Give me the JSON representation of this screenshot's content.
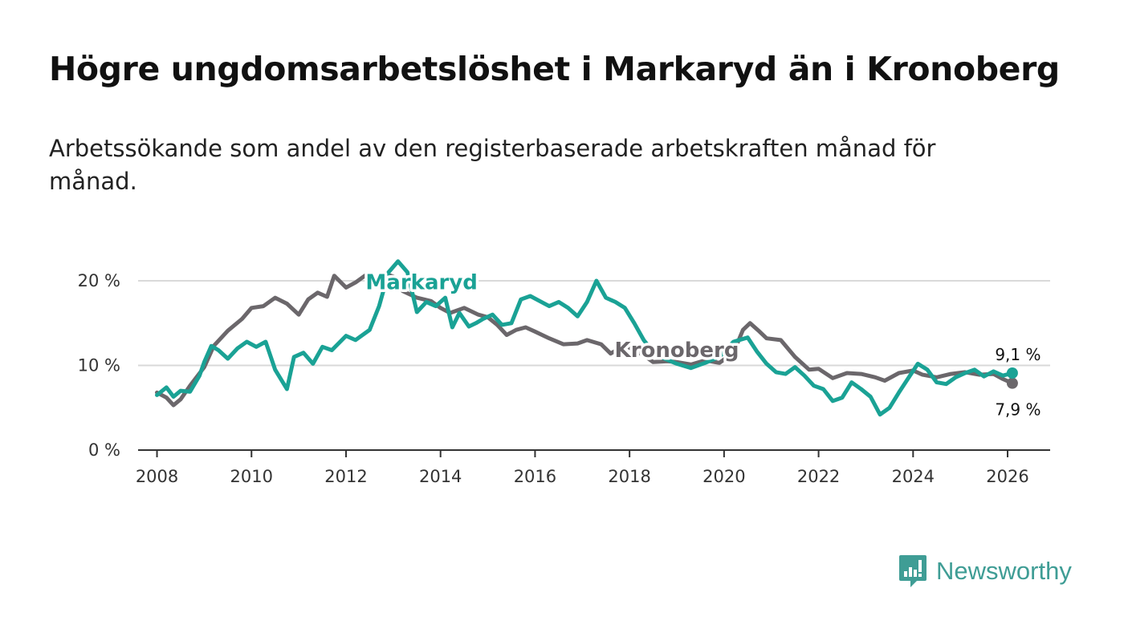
{
  "title": "Högre ungdomsarbetslöshet i Markaryd än i Kronoberg",
  "subtitle": "Arbetssökande som andel av den registerbaserade arbetskraften månad för månad.",
  "brand": {
    "name": "Newsworthy",
    "icon": "newsworthy-logo-icon"
  },
  "colors": {
    "markaryd": "#1aa295",
    "kronoberg": "#6b676b",
    "grid": "#d9d9d9",
    "axis": "#333333"
  },
  "chart_data": {
    "type": "line",
    "title": "Högre ungdomsarbetslöshet i Markaryd än i Kronoberg",
    "xlabel": "",
    "ylabel": "",
    "xlim": [
      2007.6,
      2026.9
    ],
    "ylim": [
      0,
      20
    ],
    "x_ticks": [
      2008,
      2010,
      2012,
      2014,
      2016,
      2018,
      2020,
      2022,
      2024,
      2026
    ],
    "y_ticks": [
      0,
      10,
      20
    ],
    "y_tick_labels": [
      "0 %",
      "10 %",
      "20 %"
    ],
    "series": [
      {
        "name": "Kronoberg",
        "label": "Kronoberg",
        "color": "#6b676b",
        "end_label": "7,9 %",
        "points": [
          [
            2008.0,
            6.8
          ],
          [
            2008.2,
            6.2
          ],
          [
            2008.35,
            5.3
          ],
          [
            2008.5,
            6.0
          ],
          [
            2008.7,
            7.6
          ],
          [
            2009.0,
            9.8
          ],
          [
            2009.2,
            12.3
          ],
          [
            2009.5,
            14.1
          ],
          [
            2009.8,
            15.5
          ],
          [
            2010.0,
            16.8
          ],
          [
            2010.25,
            17.0
          ],
          [
            2010.5,
            18.0
          ],
          [
            2010.75,
            17.3
          ],
          [
            2011.0,
            16.0
          ],
          [
            2011.2,
            17.8
          ],
          [
            2011.4,
            18.6
          ],
          [
            2011.6,
            18.1
          ],
          [
            2011.75,
            20.6
          ],
          [
            2012.0,
            19.2
          ],
          [
            2012.2,
            19.8
          ],
          [
            2012.4,
            20.6
          ],
          [
            2012.6,
            19.5
          ],
          [
            2012.8,
            20.9
          ],
          [
            2013.0,
            20.5
          ],
          [
            2013.2,
            18.8
          ],
          [
            2013.5,
            18.0
          ],
          [
            2013.8,
            17.6
          ],
          [
            2014.0,
            16.8
          ],
          [
            2014.2,
            16.2
          ],
          [
            2014.5,
            16.8
          ],
          [
            2014.8,
            16.0
          ],
          [
            2015.0,
            15.7
          ],
          [
            2015.2,
            14.8
          ],
          [
            2015.4,
            13.6
          ],
          [
            2015.6,
            14.2
          ],
          [
            2015.8,
            14.5
          ],
          [
            2016.0,
            14.0
          ],
          [
            2016.3,
            13.2
          ],
          [
            2016.6,
            12.5
          ],
          [
            2016.9,
            12.6
          ],
          [
            2017.1,
            13.0
          ],
          [
            2017.4,
            12.5
          ],
          [
            2017.6,
            11.4
          ],
          [
            2017.9,
            12.4
          ],
          [
            2018.1,
            11.8
          ],
          [
            2018.3,
            11.2
          ],
          [
            2018.5,
            10.4
          ],
          [
            2018.8,
            10.5
          ],
          [
            2019.0,
            10.4
          ],
          [
            2019.3,
            10.1
          ],
          [
            2019.6,
            10.6
          ],
          [
            2019.9,
            10.3
          ],
          [
            2020.2,
            11.5
          ],
          [
            2020.4,
            14.2
          ],
          [
            2020.55,
            15.0
          ],
          [
            2020.75,
            14.0
          ],
          [
            2020.9,
            13.2
          ],
          [
            2021.2,
            13.0
          ],
          [
            2021.5,
            11.0
          ],
          [
            2021.8,
            9.5
          ],
          [
            2022.0,
            9.6
          ],
          [
            2022.3,
            8.5
          ],
          [
            2022.6,
            9.1
          ],
          [
            2022.9,
            9.0
          ],
          [
            2023.2,
            8.6
          ],
          [
            2023.4,
            8.2
          ],
          [
            2023.7,
            9.1
          ],
          [
            2024.0,
            9.4
          ],
          [
            2024.2,
            8.9
          ],
          [
            2024.5,
            8.6
          ],
          [
            2024.8,
            9.0
          ],
          [
            2025.1,
            9.2
          ],
          [
            2025.4,
            8.9
          ],
          [
            2025.7,
            9.0
          ],
          [
            2025.9,
            8.4
          ],
          [
            2026.1,
            7.9
          ]
        ]
      },
      {
        "name": "Markaryd",
        "label": "Markaryd",
        "color": "#1aa295",
        "end_label": "9,1 %",
        "points": [
          [
            2008.0,
            6.5
          ],
          [
            2008.2,
            7.4
          ],
          [
            2008.35,
            6.3
          ],
          [
            2008.5,
            7.0
          ],
          [
            2008.7,
            6.9
          ],
          [
            2008.9,
            8.8
          ],
          [
            2009.0,
            10.4
          ],
          [
            2009.15,
            12.3
          ],
          [
            2009.3,
            11.8
          ],
          [
            2009.5,
            10.8
          ],
          [
            2009.7,
            12.0
          ],
          [
            2009.9,
            12.8
          ],
          [
            2010.1,
            12.2
          ],
          [
            2010.3,
            12.8
          ],
          [
            2010.5,
            9.5
          ],
          [
            2010.75,
            7.2
          ],
          [
            2010.9,
            11.0
          ],
          [
            2011.1,
            11.5
          ],
          [
            2011.3,
            10.2
          ],
          [
            2011.5,
            12.2
          ],
          [
            2011.7,
            11.8
          ],
          [
            2012.0,
            13.5
          ],
          [
            2012.2,
            13.0
          ],
          [
            2012.5,
            14.2
          ],
          [
            2012.7,
            17.0
          ],
          [
            2012.9,
            21.0
          ],
          [
            2013.1,
            22.3
          ],
          [
            2013.3,
            21.0
          ],
          [
            2013.5,
            16.3
          ],
          [
            2013.7,
            17.5
          ],
          [
            2013.9,
            17.0
          ],
          [
            2014.1,
            18.0
          ],
          [
            2014.25,
            14.5
          ],
          [
            2014.4,
            16.2
          ],
          [
            2014.6,
            14.6
          ],
          [
            2014.75,
            15.0
          ],
          [
            2014.9,
            15.5
          ],
          [
            2015.1,
            16.0
          ],
          [
            2015.3,
            14.8
          ],
          [
            2015.5,
            15.0
          ],
          [
            2015.7,
            17.8
          ],
          [
            2015.9,
            18.2
          ],
          [
            2016.1,
            17.6
          ],
          [
            2016.3,
            17.0
          ],
          [
            2016.5,
            17.5
          ],
          [
            2016.7,
            16.8
          ],
          [
            2016.9,
            15.8
          ],
          [
            2017.1,
            17.5
          ],
          [
            2017.3,
            20.0
          ],
          [
            2017.5,
            18.0
          ],
          [
            2017.7,
            17.5
          ],
          [
            2017.9,
            16.8
          ],
          [
            2018.1,
            15.0
          ],
          [
            2018.3,
            13.0
          ],
          [
            2018.5,
            11.6
          ],
          [
            2018.7,
            10.9
          ],
          [
            2019.0,
            10.2
          ],
          [
            2019.3,
            9.7
          ],
          [
            2019.6,
            10.3
          ],
          [
            2019.9,
            11.0
          ],
          [
            2020.2,
            12.8
          ],
          [
            2020.5,
            13.3
          ],
          [
            2020.7,
            11.6
          ],
          [
            2020.9,
            10.2
          ],
          [
            2021.1,
            9.2
          ],
          [
            2021.3,
            9.0
          ],
          [
            2021.5,
            9.8
          ],
          [
            2021.7,
            8.8
          ],
          [
            2021.9,
            7.6
          ],
          [
            2022.1,
            7.2
          ],
          [
            2022.3,
            5.8
          ],
          [
            2022.5,
            6.2
          ],
          [
            2022.7,
            8.0
          ],
          [
            2022.9,
            7.2
          ],
          [
            2023.1,
            6.3
          ],
          [
            2023.3,
            4.2
          ],
          [
            2023.5,
            5.0
          ],
          [
            2023.7,
            6.8
          ],
          [
            2023.9,
            8.5
          ],
          [
            2024.1,
            10.2
          ],
          [
            2024.3,
            9.5
          ],
          [
            2024.5,
            8.0
          ],
          [
            2024.7,
            7.8
          ],
          [
            2024.9,
            8.6
          ],
          [
            2025.1,
            9.1
          ],
          [
            2025.3,
            9.5
          ],
          [
            2025.5,
            8.7
          ],
          [
            2025.7,
            9.3
          ],
          [
            2025.9,
            8.8
          ],
          [
            2026.1,
            9.1
          ]
        ]
      }
    ]
  }
}
